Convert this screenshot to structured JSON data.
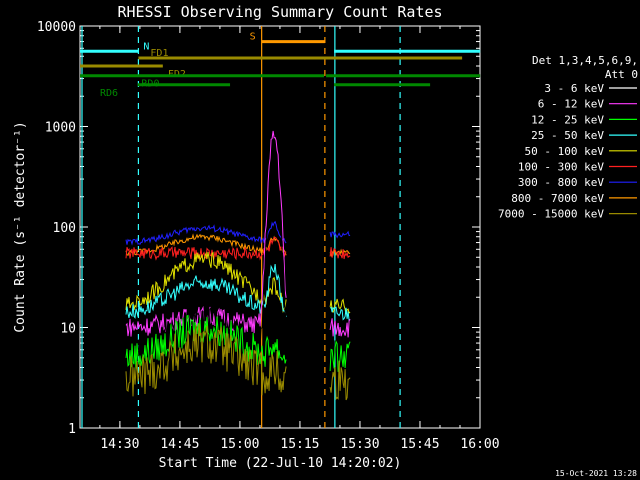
{
  "chart_data": {
    "type": "line",
    "title": "RHESSI Observing Summary Count Rates",
    "xlabel": "Start Time (22-Jul-10 14:20:02)",
    "ylabel": "Count Rate (s⁻¹ detector⁻¹)",
    "y_scale": "log",
    "ylim": [
      1,
      10000
    ],
    "xlim_minutes": [
      0,
      99.97
    ],
    "x_ticks": [
      {
        "m": 9.97,
        "label": "14:30"
      },
      {
        "m": 24.97,
        "label": "14:45"
      },
      {
        "m": 39.97,
        "label": "15:00"
      },
      {
        "m": 54.97,
        "label": "15:15"
      },
      {
        "m": 69.97,
        "label": "15:30"
      },
      {
        "m": 84.97,
        "label": "15:45"
      },
      {
        "m": 99.97,
        "label": "16:00"
      }
    ],
    "y_ticks": [
      {
        "v": 1,
        "label": "1"
      },
      {
        "v": 10,
        "label": "10"
      },
      {
        "v": 100,
        "label": "100"
      },
      {
        "v": 1000,
        "label": "1000"
      },
      {
        "v": 10000,
        "label": "10000"
      }
    ],
    "legend_header": [
      "Det 1,3,4,5,6,9,",
      "Att 0"
    ],
    "legend_position": "right",
    "series": [
      {
        "name": "3 - 6 keV",
        "color": "#000000"
      },
      {
        "name": "6 - 12 keV",
        "color": "#ff3bff"
      },
      {
        "name": "12 - 25 keV",
        "color": "#00ff00"
      },
      {
        "name": "25 - 50 keV",
        "color": "#33ffff"
      },
      {
        "name": "50 - 100 keV",
        "color": "#e0e000"
      },
      {
        "name": "100 - 300 keV",
        "color": "#ff2020"
      },
      {
        "name": "300 - 800 keV",
        "color": "#2020ff"
      },
      {
        "name": "800 - 7000 keV",
        "color": "#ff9900"
      },
      {
        "name": "7000 - 15000 keV",
        "color": "#998a00"
      }
    ],
    "flags": [
      {
        "label": "N",
        "color": "#33ffff",
        "y": 5600,
        "segments": [
          [
            0,
            14.6
          ],
          [
            63.5,
            100
          ]
        ]
      },
      {
        "label": "S",
        "color": "#ff9900",
        "y": 7000,
        "segments": [
          [
            45.4,
            61.2
          ]
        ]
      },
      {
        "label": "FD1",
        "color": "#998a00",
        "y": 4800,
        "segments": [
          [
            14.6,
            95.5
          ]
        ]
      },
      {
        "label": "FD2",
        "color": "#998a00",
        "y": 4000,
        "segments": [
          [
            0,
            20.7
          ]
        ]
      },
      {
        "label": "RD0",
        "color": "#008800",
        "y": 3200,
        "segments": [
          [
            0,
            61.0
          ],
          [
            61.5,
            100
          ]
        ]
      },
      {
        "label": "RD6",
        "color": "#008800",
        "y": 2600,
        "segments": [
          [
            14.4,
            37.5
          ],
          [
            63.5,
            87.5
          ]
        ]
      }
    ],
    "vertical_lines": [
      {
        "m": 14.6,
        "color": "#33ffff",
        "style": "dashed"
      },
      {
        "m": 0.5,
        "color": "#33ffff",
        "style": "solid"
      },
      {
        "m": 45.4,
        "color": "#ff9900",
        "style": "solid"
      },
      {
        "m": 61.2,
        "color": "#ff9900",
        "style": "dashed"
      },
      {
        "m": 63.7,
        "color": "#33ffff",
        "style": "solid"
      },
      {
        "m": 80.0,
        "color": "#33ffff",
        "style": "dashed"
      }
    ],
    "data_intervals": [
      [
        11.5,
        51.5
      ],
      [
        62.5,
        67.5
      ]
    ],
    "timestamp": "15-Oct-2021 13:28"
  }
}
